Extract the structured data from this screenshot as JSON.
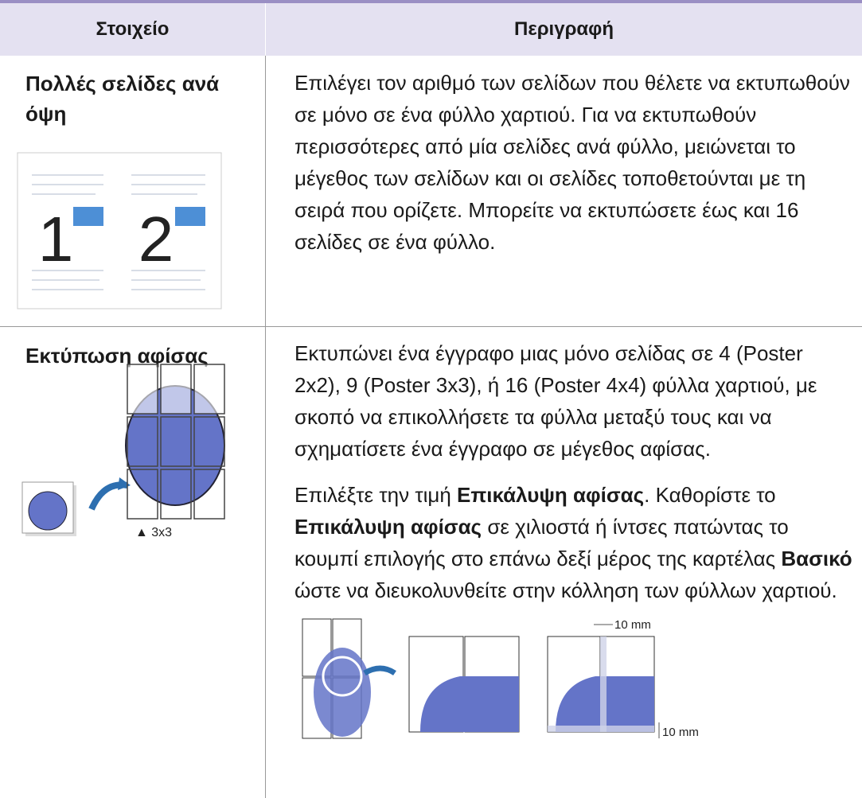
{
  "table": {
    "headers": [
      "Στοιχείο",
      "Περιγραφή"
    ],
    "rows": [
      {
        "item": "Πολλές σελίδες ανά όψη",
        "figure": {
          "pages": [
            "1",
            "2"
          ]
        },
        "description": [
          [
            {
              "text": "Επιλέγει τον αριθμό των σελίδων που θέλετε να εκτυπωθούν σε μόνο σε ένα φύλλο χαρτιού. Για να εκτυπωθούν περισσότερες από μία σελίδες ανά φύλλο, μειώνεται το μέγεθος των σελίδων και οι σελίδες τοποθετούνται με τη σειρά που ορίζετε. Μπορείτε να εκτυπώσετε έως και 16 σελίδες σε ένα φύλλο."
            }
          ]
        ]
      },
      {
        "item": "Εκτύπωση αφίσας",
        "figure": {
          "caption": "▲ 3x3"
        },
        "description": [
          [
            {
              "text": "Εκτυπώνει ένα έγγραφο μιας μόνο σελίδας σε 4 (Poster 2x2), 9 (Poster 3x3), ή 16 (Poster 4x4) φύλλα χαρτιού, με σκοπό να επικολλήσετε τα φύλλα μεταξύ τους και να σχηματίσετε ένα έγγραφο σε μέγεθος αφίσας."
            }
          ],
          [
            {
              "text": "Επιλέξτε την τιμή "
            },
            {
              "text": "Επικάλυψη αφίσας",
              "bold": true
            },
            {
              "text": ". Καθορίστε το "
            },
            {
              "text": "Επικάλυψη αφίσας",
              "bold": true
            },
            {
              "text": " σε χιλιοστά ή ίντσες πατώντας το κουμπί επιλογής στο επάνω δεξί μέρος της καρτέλας "
            },
            {
              "text": "Βασικό",
              "bold": true
            },
            {
              "text": " ώστε να διευκολυνθείτε στην κόλληση των φύλλων χαρτιού."
            }
          ]
        ],
        "overlap_figure": {
          "labels": [
            "10 mm",
            "10 mm"
          ]
        }
      }
    ]
  }
}
